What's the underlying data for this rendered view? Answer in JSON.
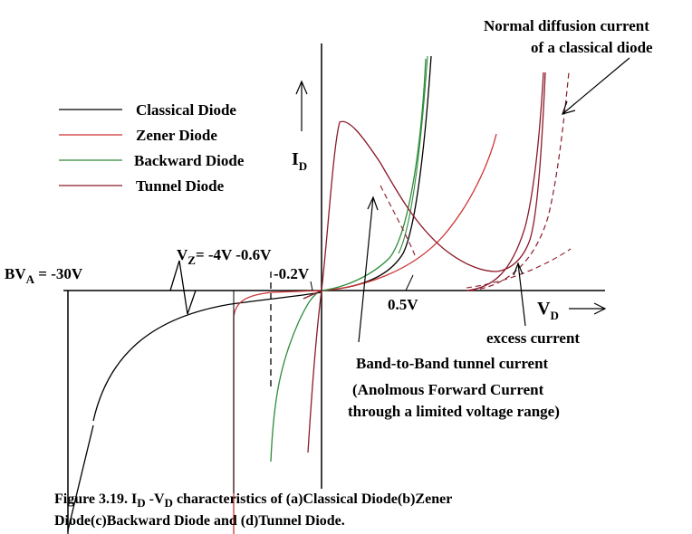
{
  "legend": {
    "items": [
      {
        "label": "Classical Diode",
        "color": "#000000"
      },
      {
        "label": "Zener Diode",
        "color": "#cc3333"
      },
      {
        "label": "Backward Diode",
        "color": "#2e8b3a"
      },
      {
        "label": "Tunnel Diode",
        "color": "#8b1a2a"
      }
    ]
  },
  "axes": {
    "y_label_main": "I",
    "y_label_sub": "D",
    "x_label_main": "V",
    "x_label_sub": "D"
  },
  "annotations": {
    "bva_main": "BV",
    "bva_sub": "A",
    "bva_value": " = -30V",
    "vz_main": "V",
    "vz_sub": "Z",
    "vz_value": "= -4V -0.6V",
    "neg_02v": "-0.2V",
    "pos_05v": "0.5V",
    "normal_diffusion_1": "Normal diffusion current",
    "normal_diffusion_2": "of a classical diode",
    "excess_current": "excess current",
    "band_to_band": "Band-to-Band tunnel current",
    "anomalous_1": "(Anolmous Forward  Current",
    "anomalous_2": "through a limited voltage range)"
  },
  "caption": {
    "line1_pre": "Figure 3.19. I",
    "line1_sub1": "D",
    "line1_mid": " -V",
    "line1_sub2": "D",
    "line1_post": "  characteristics of (a)Classical Diode(b)Zener",
    "line2": "Diode(c)Backward Diode and (d)Tunnel Diode."
  }
}
